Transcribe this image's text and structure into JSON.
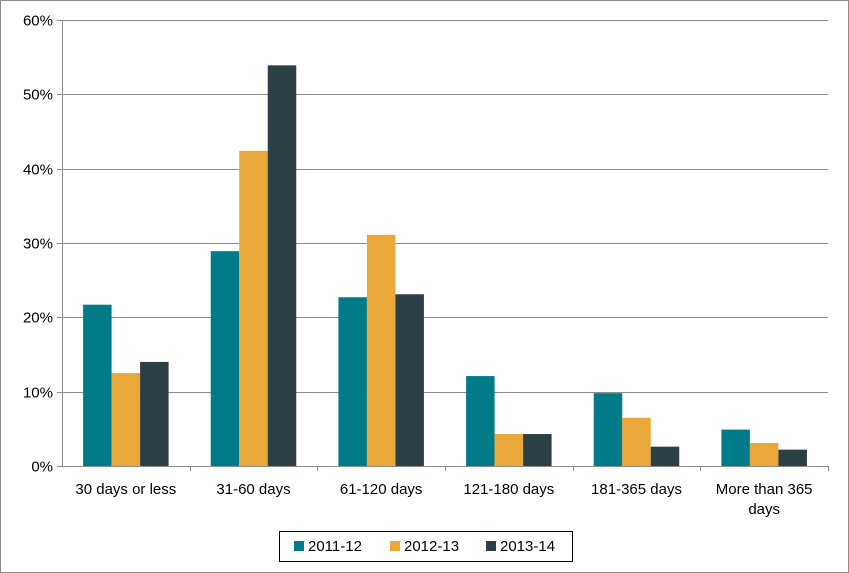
{
  "chart_data": {
    "type": "bar",
    "title": "",
    "xlabel": "",
    "ylabel": "",
    "categories": [
      [
        "30 days or less"
      ],
      [
        "31-60 days"
      ],
      [
        "61-120 days"
      ],
      [
        "121-180 days"
      ],
      [
        "181-365 days"
      ],
      [
        "More than 365",
        "days"
      ]
    ],
    "series": [
      {
        "name": "2011-12",
        "color": "#007b87",
        "values": [
          21.7,
          28.9,
          22.7,
          12.1,
          9.8,
          4.9
        ]
      },
      {
        "name": "2012-13",
        "color": "#eaa83a",
        "values": [
          12.5,
          42.4,
          31.1,
          4.3,
          6.5,
          3.1
        ]
      },
      {
        "name": "2013-14",
        "color": "#2b3f45",
        "values": [
          14.0,
          53.9,
          23.1,
          4.3,
          2.6,
          2.2
        ]
      }
    ],
    "ylim": [
      0,
      60
    ],
    "yticks": [
      0,
      10,
      20,
      30,
      40,
      50,
      60
    ],
    "ytick_format": "percent",
    "grid": true,
    "legend_position": "bottom"
  }
}
